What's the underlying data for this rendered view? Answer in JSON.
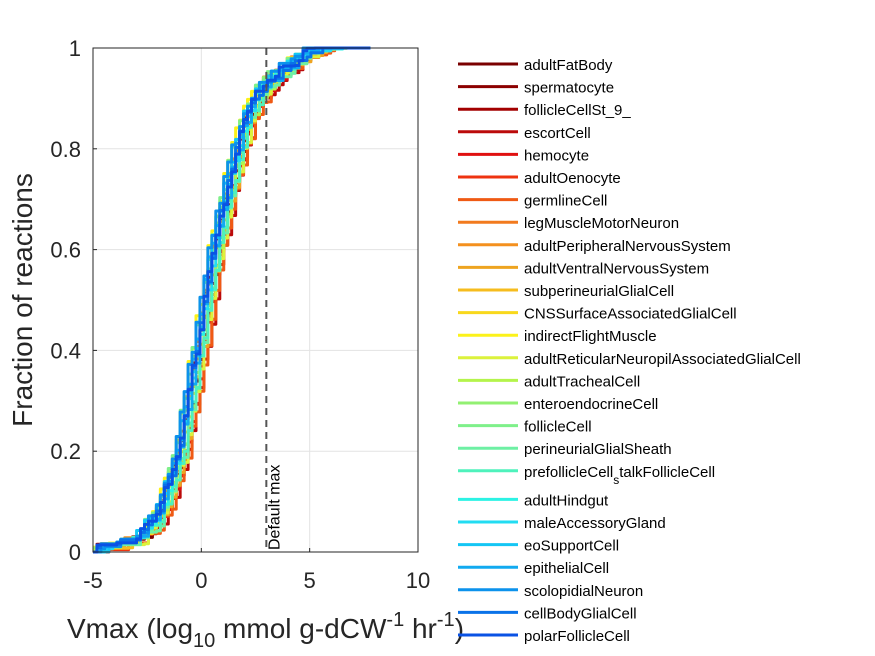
{
  "chart_data": {
    "type": "line",
    "title": "",
    "xlabel_parts": [
      "Vmax (log",
      "10",
      " mmol g-dCW",
      "-1",
      " hr",
      "-1",
      ")"
    ],
    "ylabel": "Fraction of reactions",
    "xlim": [
      -5,
      10
    ],
    "ylim": [
      0,
      1
    ],
    "xticks": [
      -5,
      0,
      5,
      10
    ],
    "yticks": [
      0,
      0.2,
      0.4,
      0.6,
      0.8,
      1
    ],
    "ytick_labels": [
      "0",
      "0.2",
      "0.4",
      "0.6",
      "0.8",
      "1"
    ],
    "grid": true,
    "legend_position": "outside-right",
    "reference_line": {
      "x": 3,
      "label": "Default max",
      "style": "dashed"
    },
    "series": [
      {
        "name": "adultFatBody",
        "color": "#7a0000"
      },
      {
        "name": "spermatocyte",
        "color": "#8c0000"
      },
      {
        "name": "follicleCellSt_9_",
        "color": "#a30000"
      },
      {
        "name": "escortCell",
        "color": "#bb0a0a"
      },
      {
        "name": "hemocyte",
        "color": "#e01010"
      },
      {
        "name": "adultOenocyte",
        "color": "#ee3310"
      },
      {
        "name": "germlineCell",
        "color": "#ef5a14"
      },
      {
        "name": "legMuscleMotorNeuron",
        "color": "#f27a1e"
      },
      {
        "name": "adultPeripheralNervousSystem",
        "color": "#f4901e"
      },
      {
        "name": "adultVentralNervousSystem",
        "color": "#eea420"
      },
      {
        "name": "subperineurialGlialCell",
        "color": "#f6bc1e"
      },
      {
        "name": "CNSSurfaceAssociatedGlialCell",
        "color": "#f8d81c"
      },
      {
        "name": "indirectFlightMuscle",
        "color": "#fcf21a"
      },
      {
        "name": "adultReticularNeuropilAssociatedGlialCell",
        "color": "#dcf23c"
      },
      {
        "name": "adultTrachealCell",
        "color": "#b4f44c"
      },
      {
        "name": "enteroendocrineCell",
        "color": "#92f072"
      },
      {
        "name": "follicleCell",
        "color": "#7ef08a"
      },
      {
        "name": "perineurialGlialSheath",
        "color": "#6ef0a4"
      },
      {
        "name": "prefollicleCell",
        "name_sub": "s",
        "name_rest": "talkFollicleCell",
        "color": "#4ef2bc"
      },
      {
        "name": "adultHindgut",
        "color": "#2cf2e4"
      },
      {
        "name": "maleAccessoryGland",
        "color": "#22dcf2"
      },
      {
        "name": "eoSupportCell",
        "color": "#14c6f4"
      },
      {
        "name": "epithelialCell",
        "color": "#12aaf0"
      },
      {
        "name": "scolopidialNeuron",
        "color": "#0c92ec"
      },
      {
        "name": "cellBodyGlialCell",
        "color": "#0a72e8"
      },
      {
        "name": "polarFollicleCell",
        "color": "#0a52e4"
      }
    ],
    "cdf_shape": {
      "x": [
        -5,
        -4,
        -3,
        -2,
        -1,
        0,
        0.5,
        1,
        1.5,
        2,
        2.5,
        3,
        4,
        5,
        6,
        7.8
      ],
      "y": [
        0,
        0.005,
        0.02,
        0.07,
        0.2,
        0.45,
        0.58,
        0.68,
        0.77,
        0.85,
        0.9,
        0.93,
        0.96,
        0.99,
        1.0,
        1.0
      ]
    }
  }
}
